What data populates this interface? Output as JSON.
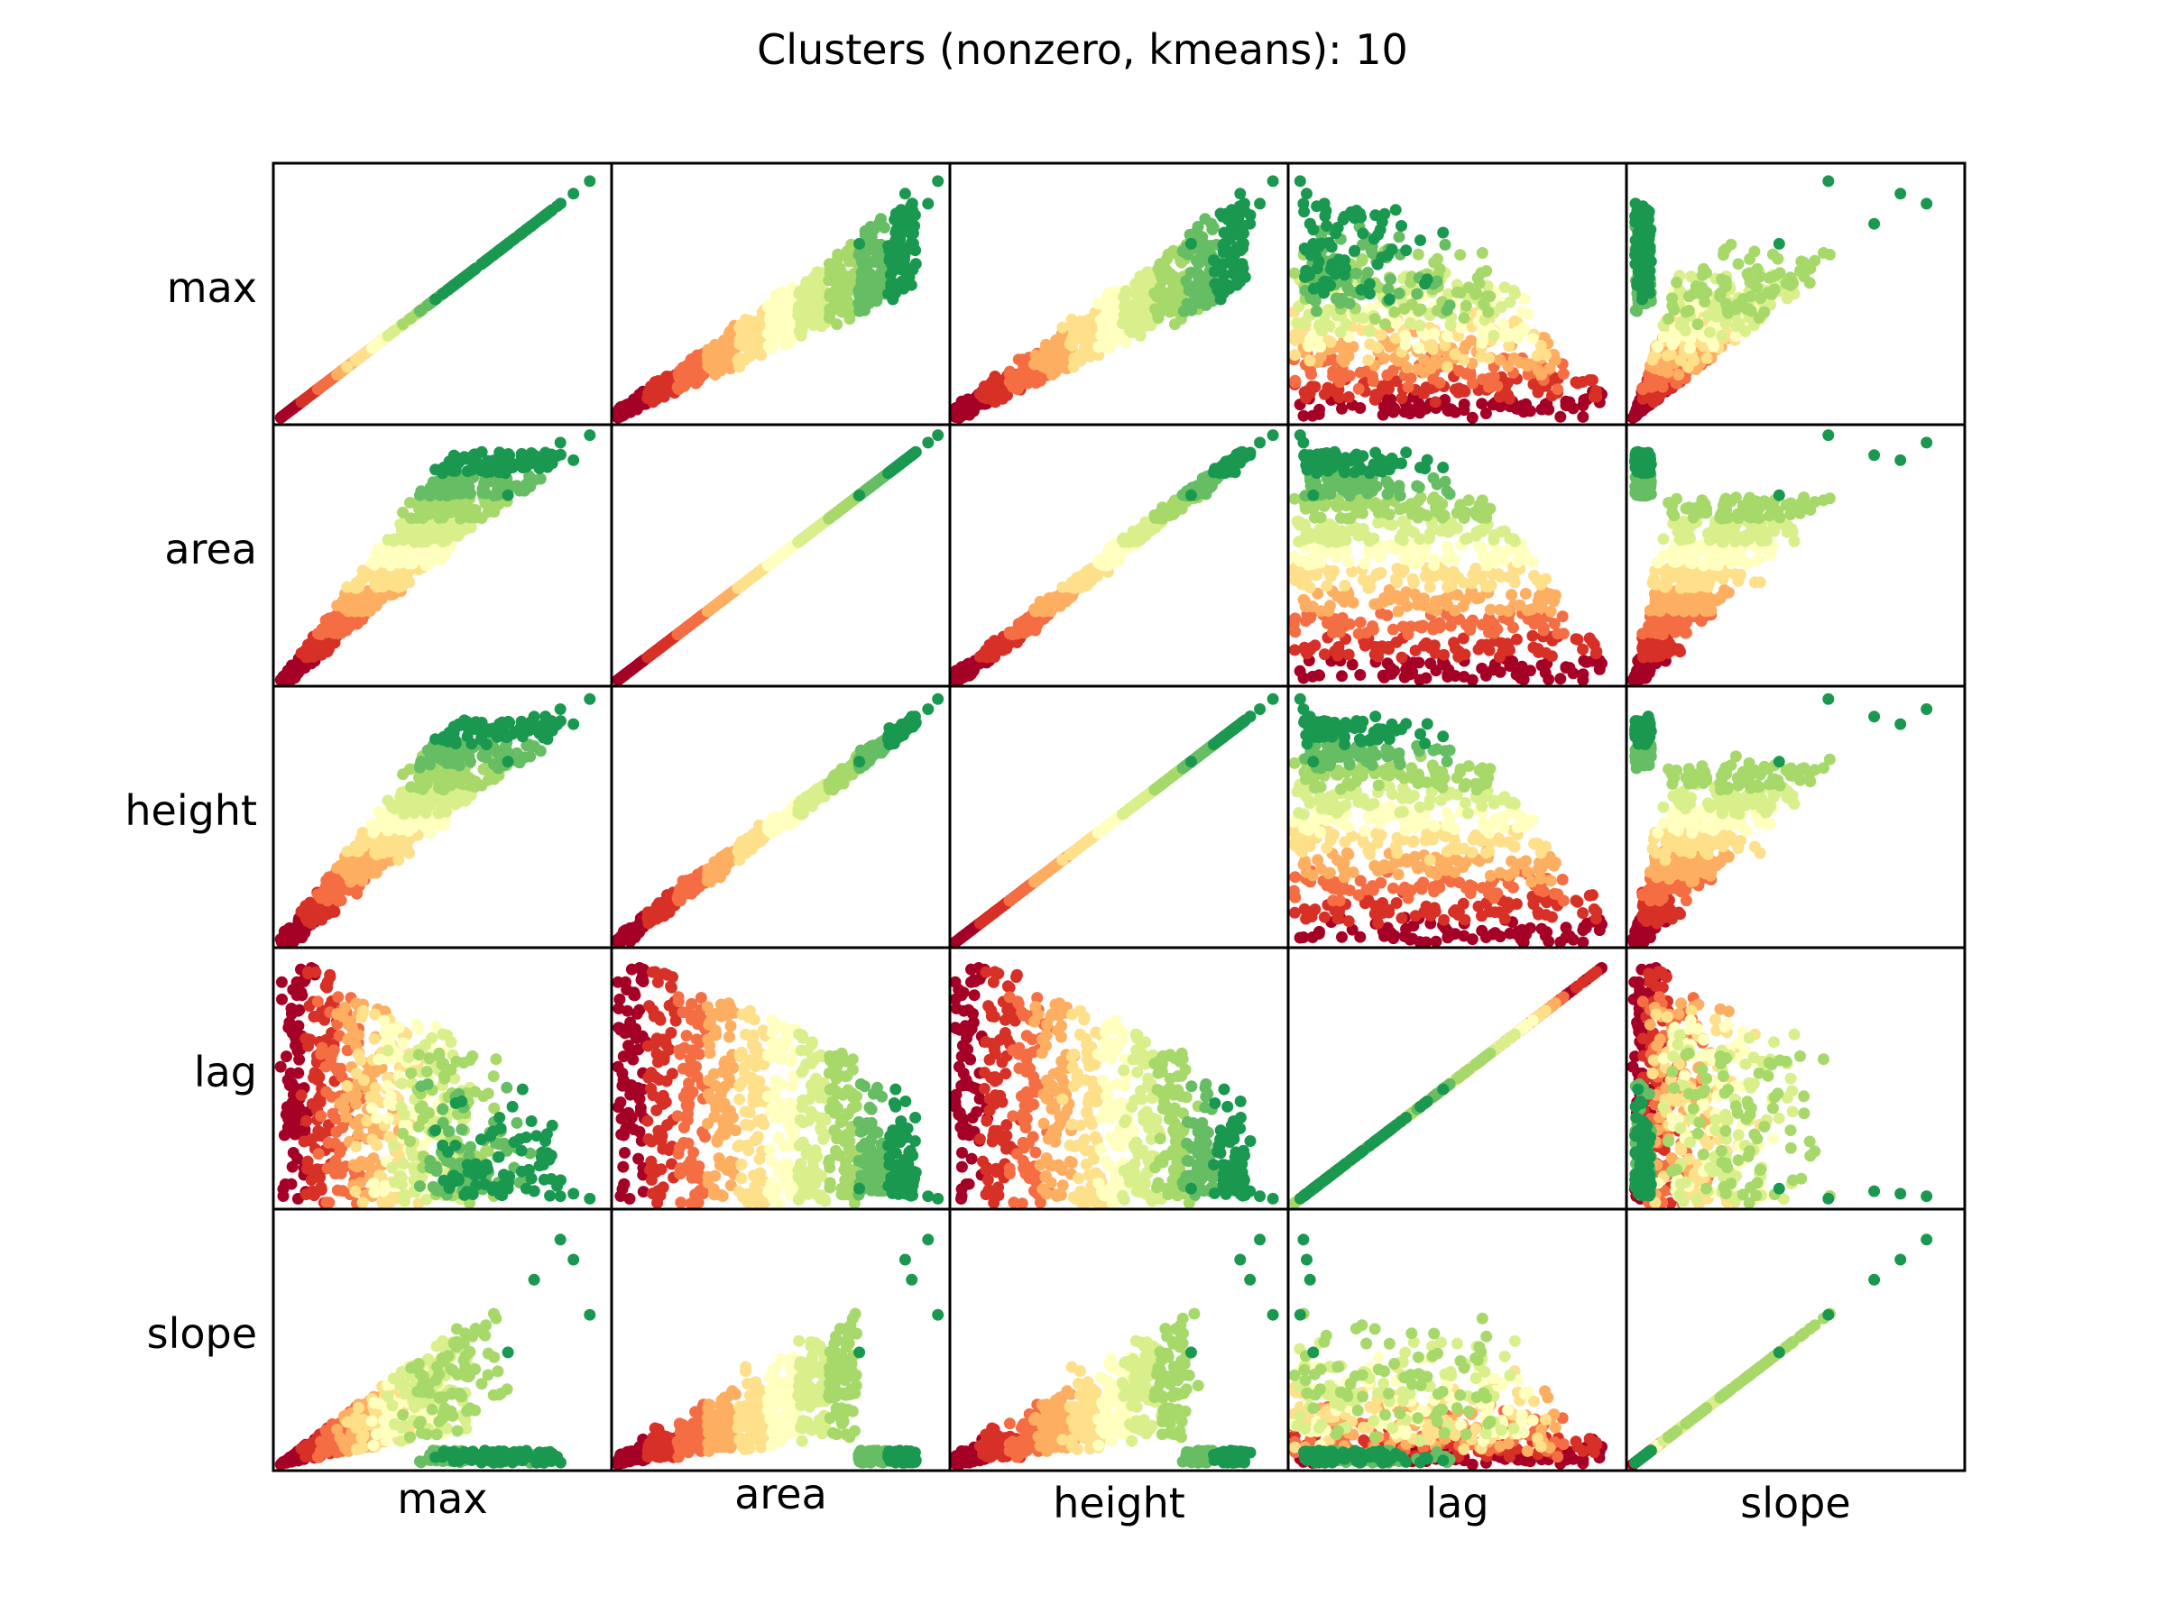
{
  "title": "Clusters (nonzero, kmeans): 10",
  "chart_data": {
    "type": "scatter",
    "kind": "scatter-matrix",
    "title": "Clusters (nonzero, kmeans): 10",
    "variables": [
      "max",
      "area",
      "height",
      "lag",
      "slope"
    ],
    "row_labels": [
      "max",
      "area",
      "height",
      "lag",
      "slope"
    ],
    "col_labels": [
      "max",
      "area",
      "height",
      "lag",
      "slope"
    ],
    "n_clusters": 10,
    "cluster_colors": [
      "#a50026",
      "#d73027",
      "#f46d43",
      "#fdae61",
      "#fee08b",
      "#ffffbf",
      "#d9ef8b",
      "#a6d96a",
      "#66bd63",
      "#1a9850"
    ],
    "colormap": "RdYlGn",
    "axes_ticks": false,
    "grid": false,
    "legend": "none"
  }
}
